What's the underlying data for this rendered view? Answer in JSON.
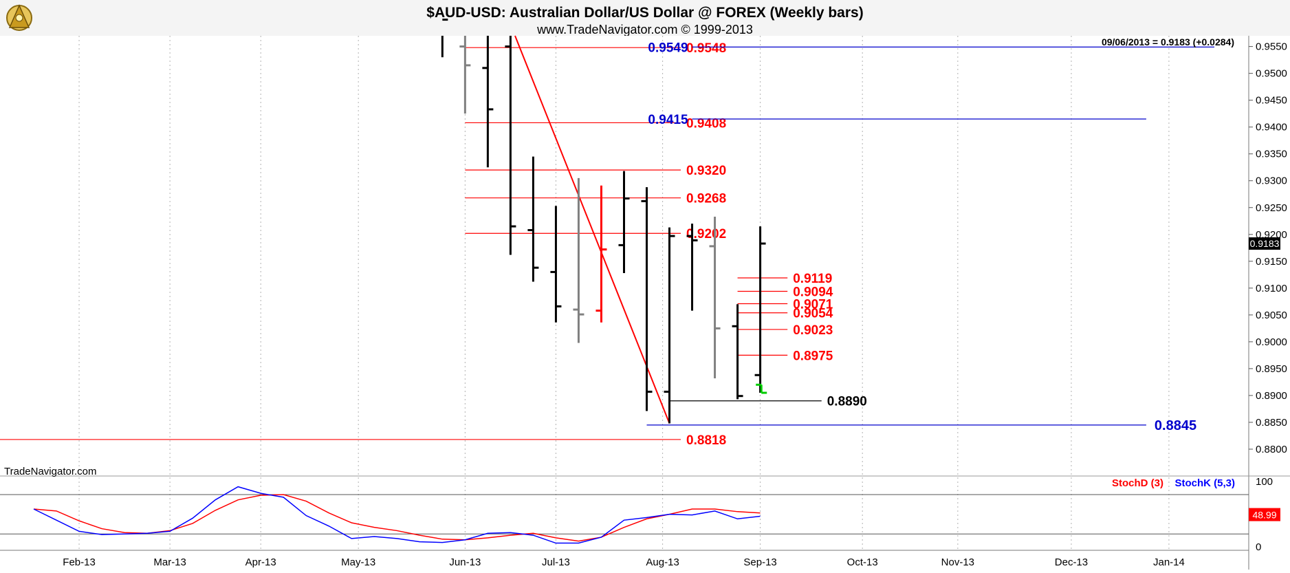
{
  "header": {
    "title": "$AUD-USD:  Australian Dollar/US Dollar @ FOREX  (Weekly bars)",
    "subtitle": "www.TradeNavigator.com © 1999-2013",
    "watermark": "TradeNavigator.com",
    "info": "09/06/2013 = 0.9183 (+0.0284)",
    "last_price_tag": "0.9183"
  },
  "colors": {
    "bar": "#000000",
    "bar_gray": "#808080",
    "bar_red": "#ff0000",
    "bar_green": "#00cc00",
    "level_red": "#ff0000",
    "level_blue": "#0000cc",
    "stoch_d": "#ff0000",
    "stoch_k": "#0000ff",
    "grid": "#b0b0b0"
  },
  "chart_data": [
    {
      "type": "ohlc",
      "title": "$AUD-USD:  Australian Dollar/US Dollar @ FOREX  (Weekly bars)",
      "ylim": [
        0.875,
        0.957
      ],
      "x_domain": [
        0,
        55
      ],
      "x_ticks": [
        {
          "label": "Feb-13",
          "x": 3
        },
        {
          "label": "Mar-13",
          "x": 7
        },
        {
          "label": "Apr-13",
          "x": 11
        },
        {
          "label": "May-13",
          "x": 15.3
        },
        {
          "label": "Jun-13",
          "x": 20
        },
        {
          "label": "Jul-13",
          "x": 24
        },
        {
          "label": "Aug-13",
          "x": 28.7
        },
        {
          "label": "Sep-13",
          "x": 33
        },
        {
          "label": "Oct-13",
          "x": 37.5
        },
        {
          "label": "Nov-13",
          "x": 41.7
        },
        {
          "label": "Dec-13",
          "x": 46.7
        },
        {
          "label": "Jan-14",
          "x": 51
        }
      ],
      "y_ticks": [
        "0.8800",
        "0.8850",
        "0.8900",
        "0.8950",
        "0.9000",
        "0.9050",
        "0.9100",
        "0.9150",
        "0.9200",
        "0.9250",
        "0.9300",
        "0.9350",
        "0.9400",
        "0.9450",
        "0.9500",
        "0.9550"
      ],
      "bars": [
        {
          "x": 19,
          "open": 0.96,
          "high": 0.96,
          "low": 0.953,
          "close": 0.96,
          "color": "black"
        },
        {
          "x": 20,
          "open": 0.955,
          "high": 0.96,
          "low": 0.9425,
          "close": 0.9515,
          "color": "gray"
        },
        {
          "x": 21,
          "open": 0.951,
          "high": 0.96,
          "low": 0.9325,
          "close": 0.9433,
          "color": "black"
        },
        {
          "x": 22,
          "open": 0.955,
          "high": 0.957,
          "low": 0.9162,
          "close": 0.9215,
          "color": "black"
        },
        {
          "x": 23,
          "open": 0.9208,
          "high": 0.9345,
          "low": 0.9112,
          "close": 0.9138,
          "color": "black"
        },
        {
          "x": 24,
          "open": 0.913,
          "high": 0.9253,
          "low": 0.9036,
          "close": 0.9066,
          "color": "black"
        },
        {
          "x": 25,
          "open": 0.906,
          "high": 0.9305,
          "low": 0.8998,
          "close": 0.9051,
          "color": "gray"
        },
        {
          "x": 26,
          "open": 0.9058,
          "high": 0.9291,
          "low": 0.9036,
          "close": 0.9172,
          "color": "red"
        },
        {
          "x": 27,
          "open": 0.918,
          "high": 0.9318,
          "low": 0.9128,
          "close": 0.9267,
          "color": "black"
        },
        {
          "x": 28,
          "open": 0.9262,
          "high": 0.9288,
          "low": 0.8871,
          "close": 0.8907,
          "color": "black"
        },
        {
          "x": 29,
          "open": 0.8907,
          "high": 0.9213,
          "low": 0.8848,
          "close": 0.9197,
          "color": "black"
        },
        {
          "x": 30,
          "open": 0.9197,
          "high": 0.922,
          "low": 0.9058,
          "close": 0.9189,
          "color": "black"
        },
        {
          "x": 31,
          "open": 0.9178,
          "high": 0.9233,
          "low": 0.8932,
          "close": 0.9025,
          "color": "gray"
        },
        {
          "x": 32,
          "open": 0.9029,
          "high": 0.907,
          "low": 0.8893,
          "close": 0.8899,
          "color": "black"
        },
        {
          "x": 33,
          "open": 0.8938,
          "high": 0.9215,
          "low": 0.8905,
          "close": 0.9183,
          "color": "black"
        },
        {
          "x": 33.05,
          "open": 0.892,
          "high": 0.892,
          "low": 0.8905,
          "close": 0.8905,
          "color": "green"
        }
      ],
      "levels": [
        {
          "value": 0.9548,
          "label": "0.9548",
          "color": "red",
          "x_start": 20,
          "x_end": 29.5
        },
        {
          "value": 0.9549,
          "label": "0.9549",
          "color": "blue",
          "x_start": 30,
          "x_end": 53,
          "label_pos": "left"
        },
        {
          "value": 0.9408,
          "label": "0.9408",
          "color": "red",
          "x_start": 20,
          "x_end": 29.5
        },
        {
          "value": 0.9415,
          "label": "0.9415",
          "color": "blue",
          "x_start": 30,
          "x_end": 50,
          "label_pos": "left"
        },
        {
          "value": 0.932,
          "label": "0.9320",
          "color": "red",
          "x_start": 20,
          "x_end": 29.5
        },
        {
          "value": 0.9268,
          "label": "0.9268",
          "color": "red",
          "x_start": 20,
          "x_end": 29.5
        },
        {
          "value": 0.9202,
          "label": "0.9202",
          "color": "red",
          "x_start": 20,
          "x_end": 29.5
        },
        {
          "value": 0.9119,
          "label": "0.9119",
          "color": "red",
          "x_start": 32,
          "x_end": 34.2
        },
        {
          "value": 0.9094,
          "label": "0.9094",
          "color": "red",
          "x_start": 32,
          "x_end": 34.2
        },
        {
          "value": 0.9071,
          "label": "0.9071",
          "color": "red",
          "x_start": 32,
          "x_end": 34.2
        },
        {
          "value": 0.9054,
          "label": "0.9054",
          "color": "red",
          "x_start": 32,
          "x_end": 34.2
        },
        {
          "value": 0.9023,
          "label": "0.9023",
          "color": "red",
          "x_start": 32,
          "x_end": 34.2
        },
        {
          "value": 0.8975,
          "label": "0.8975",
          "color": "red",
          "x_start": 32,
          "x_end": 34.2
        },
        {
          "value": 0.889,
          "label": "0.8890",
          "color": "black",
          "x_start": 29,
          "x_end": 35.7
        },
        {
          "value": 0.8845,
          "label": "0.8845",
          "color": "blue",
          "x_start": 28,
          "x_end": 50,
          "label_pos": "right",
          "big": true
        },
        {
          "value": 0.8818,
          "label": "0.8818",
          "color": "red",
          "x_start": -1,
          "x_end": 29.5
        }
      ],
      "trendline": {
        "from": {
          "x": 22.2,
          "y": 0.957
        },
        "to": {
          "x": 29,
          "y": 0.8848
        }
      }
    },
    {
      "type": "line",
      "ylim": [
        -5,
        100
      ],
      "y_ticks": [
        "0",
        "100"
      ],
      "ref_lines": [
        80,
        20
      ],
      "legend": [
        "StochD (3)",
        "StochK (5,3)"
      ],
      "last_value": "48.99",
      "x_domain": [
        0,
        55
      ],
      "series": [
        {
          "name": "StochD (3)",
          "x": [
            1,
            2,
            3,
            4,
            5,
            6,
            7,
            8,
            9,
            10,
            11,
            12,
            13,
            14,
            15,
            16,
            17,
            18,
            19,
            20,
            21,
            22,
            23,
            24,
            25,
            26,
            27,
            28,
            29,
            30,
            31,
            32,
            33
          ],
          "values": [
            58,
            55,
            40,
            28,
            22,
            21,
            25,
            36,
            56,
            72,
            79,
            80,
            70,
            52,
            37,
            30,
            25,
            18,
            12,
            11,
            14,
            18,
            21,
            14,
            9,
            15,
            30,
            43,
            50,
            58,
            58,
            54,
            52
          ]
        },
        {
          "name": "StochK (5,3)",
          "x": [
            1,
            2,
            3,
            4,
            5,
            6,
            7,
            8,
            9,
            10,
            11,
            12,
            13,
            14,
            15,
            16,
            17,
            18,
            19,
            20,
            21,
            22,
            23,
            24,
            25,
            26,
            27,
            28,
            29,
            30,
            31,
            32,
            33
          ],
          "values": [
            58,
            41,
            24,
            19,
            20,
            21,
            24,
            44,
            72,
            92,
            82,
            76,
            48,
            32,
            13,
            16,
            13,
            8,
            7,
            11,
            21,
            22,
            18,
            6,
            6,
            15,
            41,
            45,
            50,
            49,
            55,
            43,
            47
          ]
        }
      ]
    }
  ]
}
